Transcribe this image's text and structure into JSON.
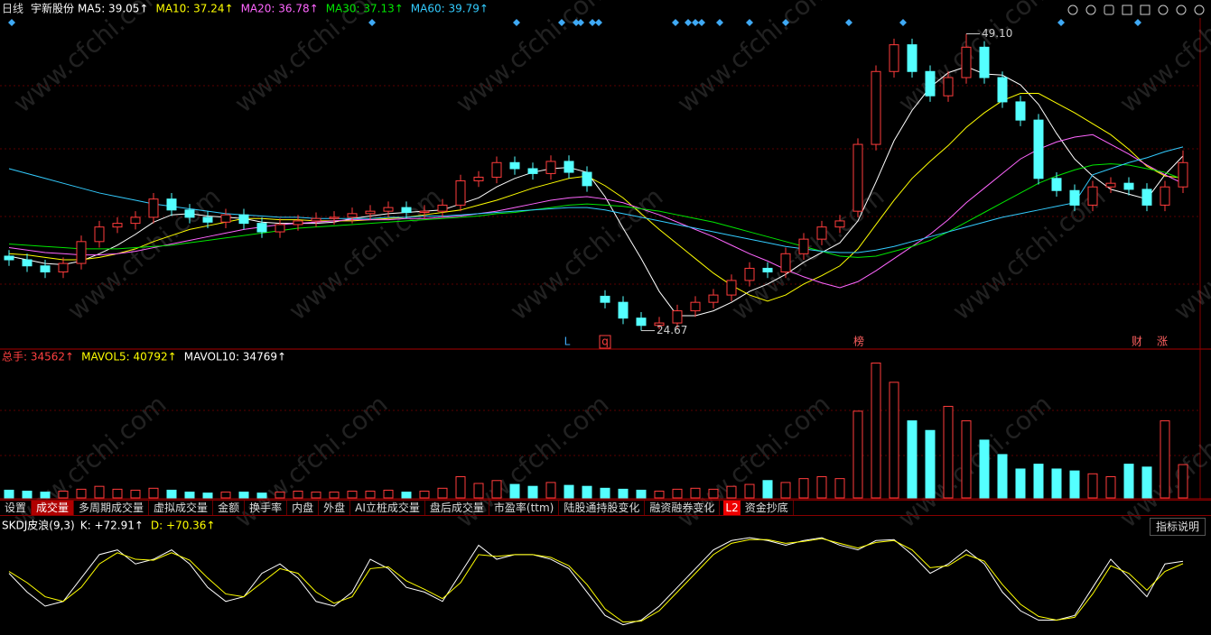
{
  "header": {
    "period": "日线",
    "stock": "宇新股份"
  },
  "chart_data": [
    {
      "type": "candlestick",
      "series": {
        "open": [
          30.8,
          30.5,
          30,
          29.5,
          30.2,
          32,
          33.2,
          33.5,
          34,
          35.5,
          34.6,
          34,
          33.6,
          34.2,
          33.5,
          32.8,
          33.4,
          33.7,
          33.9,
          34,
          34.3,
          34.5,
          34.8,
          34.4,
          34.5,
          35,
          37,
          37.3,
          38.5,
          38,
          37.6,
          38.6,
          37.7,
          27.5,
          27,
          25.7,
          25.1,
          25.3,
          26.3,
          27,
          27.6,
          28.8,
          29.8,
          29.5,
          31,
          32.2,
          33.2,
          34.5,
          40,
          46,
          48.2,
          46,
          44,
          45.5,
          48,
          45.5,
          43.5,
          42,
          37.2,
          36.2,
          35,
          36.5,
          36.8,
          36.3,
          35,
          36.5
        ],
        "high": [
          31.3,
          31,
          30.5,
          30.7,
          32.5,
          33.7,
          34,
          34.5,
          36,
          36,
          35.1,
          34.5,
          34.7,
          34.7,
          34,
          33.9,
          34.2,
          34.4,
          34.5,
          34.8,
          35,
          35.3,
          35.3,
          35,
          35.5,
          37.5,
          37.8,
          39,
          39,
          38.5,
          39.1,
          39.1,
          38.2,
          28,
          27.5,
          26.2,
          25.8,
          26.8,
          27.5,
          28.1,
          29.3,
          30.3,
          30.3,
          31.5,
          32.7,
          33.7,
          34.2,
          40.5,
          46.5,
          48.7,
          48.7,
          46.5,
          46,
          49.1,
          48.5,
          46,
          44,
          42.5,
          37.7,
          36.7,
          37,
          37.3,
          37.3,
          36.8,
          37,
          39.5
        ],
        "low": [
          30,
          29.5,
          29,
          29,
          29.7,
          31.5,
          32.7,
          33,
          33.5,
          34.1,
          33.5,
          33.1,
          33.1,
          33,
          32.3,
          32.3,
          32.9,
          33.2,
          33.4,
          33.5,
          33.8,
          34,
          33.9,
          33.9,
          34,
          34.5,
          36.5,
          36.8,
          37.5,
          37.1,
          37.1,
          37.2,
          36.1,
          26.5,
          25.2,
          24.67,
          24.8,
          24.8,
          25.8,
          26.5,
          27.1,
          28.3,
          29,
          29,
          30.5,
          31.7,
          32.7,
          34,
          39.5,
          45.5,
          45.5,
          43.5,
          43.5,
          45,
          45,
          43,
          41.5,
          36.7,
          35.7,
          34.5,
          34.5,
          36,
          35.8,
          34.5,
          34.5,
          36
        ],
        "close": [
          30.5,
          30,
          29.5,
          30.2,
          32,
          33.2,
          33.5,
          34,
          35.5,
          34.6,
          34,
          33.6,
          34.2,
          33.5,
          32.8,
          33.4,
          33.7,
          33.9,
          34,
          34.3,
          34.5,
          34.8,
          34.4,
          34.5,
          35,
          37,
          37.3,
          38.5,
          38,
          37.6,
          38.6,
          37.7,
          36.6,
          27,
          25.7,
          25.1,
          25.3,
          26.3,
          27,
          27.6,
          28.8,
          29.8,
          29.5,
          31,
          32.2,
          33.2,
          33.7,
          40,
          46,
          48.2,
          46,
          44,
          45.5,
          48,
          45.5,
          43.5,
          42,
          37.2,
          36.2,
          35,
          36.5,
          36.8,
          36.3,
          35,
          36.5,
          38.5
        ]
      },
      "lines": [
        {
          "name": "MA5: 39.05↑",
          "color": "#ffffff",
          "values": [
            30.8,
            30.5,
            30.2,
            30.1,
            30.4,
            31,
            31.7,
            32.6,
            33.6,
            34.2,
            34.3,
            34.1,
            34,
            33.9,
            33.6,
            33.5,
            33.5,
            33.5,
            33.6,
            33.9,
            34.1,
            34.3,
            34.4,
            34.5,
            34.6,
            35.1,
            35.6,
            36.5,
            37.2,
            37.7,
            38,
            38.1,
            37.7,
            35.7,
            33.1,
            30.6,
            27.9,
            25.9,
            25.9,
            26.3,
            27,
            27.9,
            28.5,
            29.3,
            30.3,
            31.1,
            31.9,
            33.7,
            36.9,
            40.3,
            42.8,
            44.7,
            45.9,
            46.4,
            45.8,
            45.7,
            44.9,
            43.3,
            40.9,
            38.8,
            37.4,
            36.3,
            35.9,
            35.5,
            37.5,
            39.05
          ]
        },
        {
          "name": "MA10: 37.24↑",
          "color": "#ffff00",
          "values": [
            31,
            30.9,
            30.7,
            30.5,
            30.5,
            30.7,
            31,
            31.4,
            32,
            32.5,
            33,
            33.3,
            33.6,
            33.9,
            33.9,
            33.8,
            33.8,
            33.7,
            33.7,
            33.7,
            33.8,
            33.9,
            34,
            34.2,
            34.4,
            34.6,
            35,
            35.4,
            35.9,
            36.4,
            36.8,
            37.2,
            37.4,
            36.6,
            35.6,
            34.3,
            33,
            31.8,
            30.6,
            29.4,
            28.4,
            27.6,
            27.1,
            27.6,
            28.5,
            29.2,
            30,
            31.4,
            33.4,
            35.4,
            37.2,
            38.6,
            39.9,
            41.4,
            42.6,
            43.6,
            44.2,
            44.2,
            43.4,
            42.6,
            41.7,
            40.8,
            39.6,
            38.2,
            37.4,
            37.24
          ]
        },
        {
          "name": "MA20: 36.78↑",
          "color": "#ff66ff",
          "values": [
            31.5,
            31.3,
            31.1,
            31,
            30.9,
            30.9,
            31,
            31.2,
            31.5,
            31.8,
            32.1,
            32.4,
            32.7,
            33,
            33.2,
            33.4,
            33.5,
            33.6,
            33.7,
            33.8,
            33.8,
            33.8,
            33.9,
            33.9,
            34,
            34.1,
            34.3,
            34.5,
            34.8,
            35.1,
            35.4,
            35.6,
            35.7,
            35.5,
            35.2,
            34.7,
            34.2,
            33.6,
            33,
            32.4,
            31.7,
            31,
            30.4,
            29.7,
            29.1,
            28.6,
            28.2,
            28.7,
            29.6,
            30.6,
            31.6,
            32.6,
            33.8,
            35.2,
            36.4,
            37.6,
            38.8,
            39.6,
            40.2,
            40.6,
            40.8,
            40,
            39.2,
            38.3,
            37.5,
            36.78
          ]
        },
        {
          "name": "MA30: 37.13↑",
          "color": "#00e600",
          "values": [
            31.8,
            31.7,
            31.6,
            31.5,
            31.4,
            31.4,
            31.4,
            31.5,
            31.6,
            31.7,
            31.9,
            32.1,
            32.3,
            32.5,
            32.7,
            32.9,
            33.1,
            33.2,
            33.3,
            33.4,
            33.5,
            33.6,
            33.7,
            33.8,
            33.9,
            34,
            34.1,
            34.3,
            34.4,
            34.6,
            34.8,
            35,
            35.1,
            35,
            34.9,
            34.7,
            34.5,
            34.2,
            33.9,
            33.6,
            33.2,
            32.8,
            32.4,
            32,
            31.6,
            31.2,
            30.8,
            30.7,
            30.8,
            31.2,
            31.6,
            32.1,
            32.8,
            33.6,
            34.4,
            35.2,
            36,
            36.8,
            37.4,
            37.9,
            38.3,
            38.4,
            38.3,
            38,
            37.7,
            37.13
          ]
        },
        {
          "name": "MA60: 39.79↑",
          "color": "#33ccff",
          "values": [
            38,
            37.6,
            37.2,
            36.8,
            36.4,
            36,
            35.7,
            35.4,
            35.1,
            34.9,
            34.7,
            34.5,
            34.3,
            34.2,
            34.1,
            34,
            34,
            33.9,
            33.9,
            33.9,
            33.9,
            34,
            34,
            34.1,
            34.1,
            34.2,
            34.3,
            34.4,
            34.5,
            34.6,
            34.7,
            34.8,
            34.8,
            34.6,
            34.3,
            34,
            33.7,
            33.4,
            33.1,
            32.8,
            32.5,
            32.2,
            31.9,
            31.6,
            31.4,
            31.2,
            31.1,
            31.1,
            31.3,
            31.6,
            32,
            32.4,
            32.8,
            33.2,
            33.6,
            34,
            34.3,
            34.6,
            34.9,
            35.2,
            37.5,
            38,
            38.5,
            38.9,
            39.4,
            39.79
          ]
        }
      ],
      "ylim": [
        23.3,
        50.4
      ],
      "annotations": {
        "max": "49.10",
        "min": "24.67"
      },
      "events": [
        "L",
        "q",
        "榜",
        "财",
        "涨"
      ]
    },
    {
      "type": "bar",
      "series": [
        {
          "name": "总手: 34562↑",
          "values": [
            8000,
            7000,
            6000,
            7000,
            9000,
            12000,
            9000,
            8000,
            10000,
            8000,
            6000,
            5000,
            6000,
            6000,
            5000,
            6000,
            7000,
            6000,
            6000,
            7000,
            7000,
            8000,
            6000,
            7000,
            10000,
            22000,
            15000,
            18000,
            14000,
            12000,
            16000,
            13000,
            12000,
            10000,
            9000,
            8000,
            7000,
            9000,
            10000,
            9000,
            12000,
            14000,
            18000,
            16000,
            20000,
            22000,
            20000,
            90000,
            140000,
            120000,
            80000,
            70000,
            95000,
            80000,
            60000,
            45000,
            30000,
            35000,
            30000,
            28000,
            25000,
            22000,
            35000,
            32000,
            80000,
            34562
          ]
        }
      ],
      "indicators": [
        {
          "name": "MAVOL5: 40792↑",
          "color": "#ffff00"
        },
        {
          "name": "MAVOL10: 34769↑",
          "color": "#ffffff"
        }
      ],
      "ylim": [
        0,
        147000
      ]
    },
    {
      "type": "line",
      "title": "SKDJ皮浪(9,3)",
      "series": [
        {
          "name": "K: +72.91↑",
          "color": "#ffffff",
          "values": [
            60,
            40,
            25,
            30,
            55,
            80,
            85,
            70,
            75,
            85,
            70,
            45,
            30,
            35,
            60,
            70,
            55,
            30,
            25,
            40,
            75,
            65,
            45,
            40,
            30,
            60,
            90,
            75,
            80,
            80,
            75,
            65,
            40,
            15,
            5,
            10,
            25,
            45,
            65,
            85,
            95,
            98,
            95,
            90,
            95,
            98,
            90,
            85,
            95,
            96,
            80,
            60,
            70,
            85,
            70,
            40,
            20,
            10,
            10,
            15,
            45,
            75,
            55,
            35,
            70,
            72.91
          ]
        },
        {
          "name": "D: +70.36↑",
          "color": "#ffff00",
          "values": [
            62,
            50,
            35,
            30,
            45,
            70,
            82,
            75,
            74,
            82,
            74,
            55,
            38,
            35,
            50,
            65,
            60,
            40,
            28,
            35,
            65,
            67,
            52,
            43,
            33,
            50,
            80,
            78,
            80,
            80,
            77,
            68,
            48,
            22,
            8,
            9,
            20,
            40,
            60,
            80,
            92,
            96,
            96,
            92,
            94,
            97,
            92,
            87,
            93,
            95,
            85,
            66,
            68,
            80,
            73,
            48,
            27,
            14,
            10,
            13,
            38,
            68,
            60,
            42,
            62,
            70.36
          ]
        }
      ],
      "ylim": [
        -2,
        102
      ]
    }
  ],
  "tabs": [
    "设置",
    "成交量",
    "多周期成交量",
    "虚拟成交量",
    "金额",
    "换手率",
    "内盘",
    "外盘",
    "AI立桩成交量",
    "盘后成交量",
    "市盈率(ttm)",
    "陆股通持股变化",
    "融资融券变化"
  ],
  "l2_tab": {
    "badge": "L2",
    "label": "资金抄底"
  },
  "help_button": "指标说明",
  "watermark": "www.cfchi.com"
}
